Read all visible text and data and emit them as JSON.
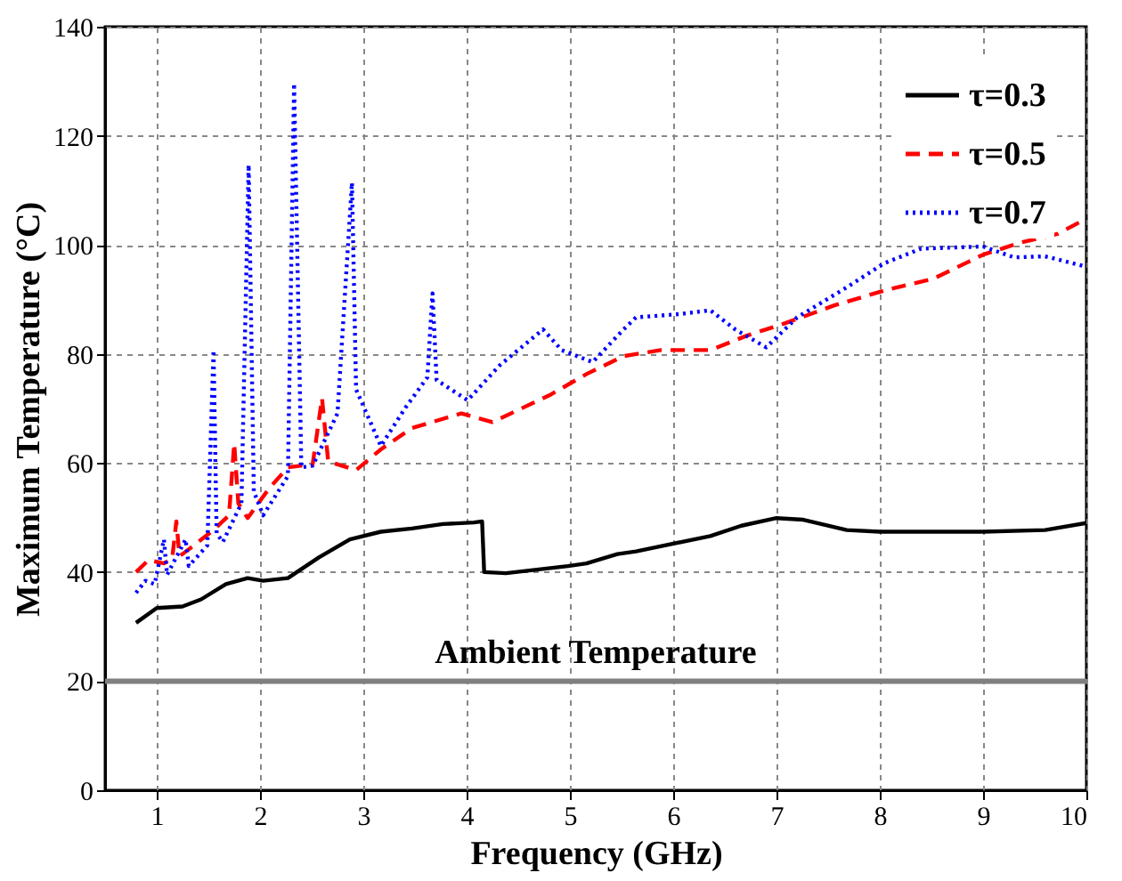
{
  "chart_data": {
    "type": "line",
    "xlabel": "Frequency (GHz)",
    "ylabel": "Maximum Temperature (°C)",
    "xlim": [
      0.5,
      10
    ],
    "xticks": [
      1,
      2,
      3,
      4,
      5,
      6,
      7,
      8,
      9,
      10
    ],
    "ylim": [
      0,
      140
    ],
    "yticks": [
      0,
      20,
      40,
      60,
      80,
      100,
      120,
      140
    ],
    "grid": true,
    "legend": "top right",
    "ref_lines": [
      {
        "axis": "y",
        "value": 20,
        "label": "Ambient Temperature",
        "color": "#808080"
      }
    ],
    "series": [
      {
        "name": "τ=0.3",
        "color": "#000000",
        "line_style": "solid",
        "x": [
          0.8,
          1.0,
          1.25,
          1.43,
          1.67,
          1.88,
          2.03,
          2.27,
          2.57,
          2.87,
          3.17,
          3.47,
          3.77,
          4.07,
          4.15,
          4.17,
          4.38,
          4.98,
          5.16,
          5.46,
          5.64,
          6.36,
          6.66,
          7.0,
          7.26,
          7.68,
          8.0,
          9.0,
          9.6,
          10.0
        ],
        "values": [
          30.7,
          33.4,
          33.7,
          35,
          37.8,
          38.9,
          38.4,
          38.9,
          42.7,
          46,
          47.4,
          48,
          48.8,
          49.1,
          49.3,
          40,
          39.8,
          41.1,
          41.6,
          43.3,
          43.8,
          46.6,
          48.5,
          49.9,
          49.6,
          47.7,
          47.4,
          47.4,
          47.7,
          49
        ]
      },
      {
        "name": "τ=0.5",
        "color": "#ff0000",
        "line_style": "dashed",
        "x": [
          0.8,
          0.92,
          1.07,
          1.15,
          1.19,
          1.22,
          1.25,
          1.55,
          1.7,
          1.75,
          1.79,
          1.88,
          2.09,
          2.27,
          2.51,
          2.6,
          2.66,
          2.93,
          3.17,
          3.47,
          3.95,
          4.25,
          4.8,
          5.16,
          5.52,
          5.88,
          6.36,
          6.72,
          7.08,
          7.56,
          8.04,
          8.52,
          9.0,
          9.36,
          9.72,
          10.0
        ],
        "values": [
          40,
          42.2,
          41.6,
          42.5,
          49.3,
          43,
          43.3,
          47.7,
          50.4,
          63.6,
          52.6,
          49.9,
          55.4,
          59.2,
          59.8,
          71.9,
          60.3,
          58.7,
          62.5,
          66.4,
          69.1,
          67.5,
          72.4,
          76.3,
          79.6,
          80.7,
          80.7,
          83.4,
          85.6,
          88.9,
          91.6,
          93.8,
          98.2,
          100.4,
          102,
          104.8
        ]
      },
      {
        "name": "τ=0.7",
        "color": "#0000ff",
        "line_style": "dotted",
        "x": [
          0.8,
          0.89,
          0.98,
          1.07,
          1.1,
          1.28,
          1.31,
          1.49,
          1.55,
          1.58,
          1.64,
          1.82,
          1.89,
          1.94,
          2.03,
          2.27,
          2.33,
          2.4,
          2.51,
          2.75,
          2.89,
          2.93,
          3.17,
          3.41,
          3.62,
          3.67,
          3.71,
          4.01,
          4.32,
          4.74,
          4.92,
          5.22,
          5.52,
          5.64,
          6.06,
          6.36,
          6.6,
          6.9,
          7.2,
          7.68,
          8.04,
          8.4,
          9.0,
          9.3,
          9.6,
          10.0
        ],
        "values": [
          36.2,
          38.4,
          37.8,
          46,
          39.5,
          46,
          41.1,
          44.9,
          80.7,
          47.1,
          45.5,
          52.6,
          114.7,
          54.8,
          50.4,
          57.6,
          129.6,
          59.2,
          59.5,
          69.1,
          111.4,
          73.5,
          63.1,
          70.2,
          75.7,
          91.1,
          75.2,
          71.5,
          77.9,
          84.5,
          80.7,
          78.5,
          84.5,
          86.7,
          87.3,
          88,
          84.5,
          81.2,
          86.7,
          92.2,
          96.6,
          99.3,
          99.7,
          97.7,
          97.9,
          96
        ]
      }
    ]
  }
}
